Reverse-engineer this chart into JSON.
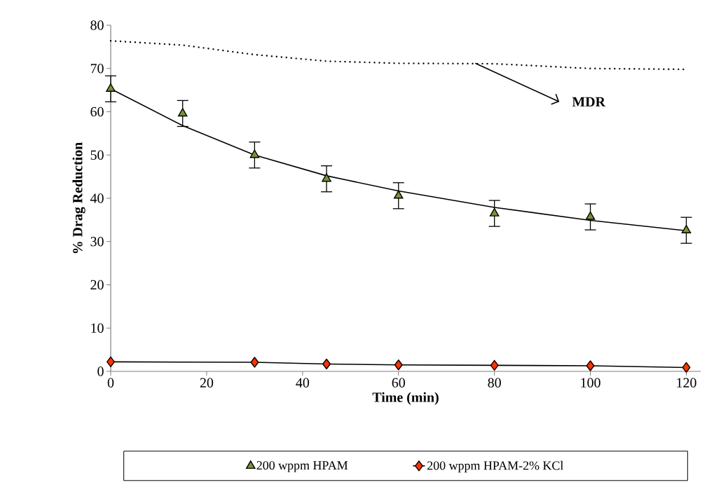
{
  "chart_data": {
    "type": "scatter",
    "xlabel": "Time (min)",
    "ylabel": "% Drag Reduction",
    "xlim": [
      0,
      123
    ],
    "ylim": [
      0,
      80
    ],
    "xticks": [
      0,
      20,
      40,
      60,
      80,
      100,
      120
    ],
    "yticks": [
      0,
      10,
      20,
      30,
      40,
      50,
      60,
      70,
      80
    ],
    "legend": "bottom",
    "grid": false,
    "annotations": [
      {
        "text": "MDR",
        "x": 76,
        "y": 71.2
      }
    ],
    "series": [
      {
        "name": "200 wppm HPAM",
        "color": "#77933c",
        "marker": "triangle",
        "x": [
          0,
          15,
          30,
          45,
          60,
          80,
          100,
          120
        ],
        "values": [
          65.3,
          59.6,
          50,
          44.5,
          40.6,
          36.5,
          35.7,
          32.6
        ],
        "errors": [
          3,
          3,
          3,
          3,
          3,
          3,
          3,
          3
        ]
      },
      {
        "type": "line",
        "color": "#000000",
        "marker": "none",
        "line_style": "solid",
        "x": [
          0,
          15,
          30,
          45,
          60,
          80,
          100,
          120
        ],
        "values": [
          65.3,
          56.8,
          50,
          45.2,
          41.7,
          37.9,
          34.9,
          32.5
        ]
      },
      {
        "name": "200 wppm HPAM-2% KCl",
        "type": "line",
        "color": "#ff3300",
        "marker": "diamond",
        "line_style": "solid",
        "x": [
          0,
          30,
          45,
          60,
          80,
          100,
          120
        ],
        "values": [
          2.2,
          2.1,
          1.7,
          1.5,
          1.4,
          1.3,
          0.9
        ]
      },
      {
        "type": "line",
        "color": "#000000",
        "marker": "none",
        "line_style": "dotted",
        "x": [
          0,
          15,
          30,
          45,
          60,
          80,
          100,
          120
        ],
        "values": [
          76.4,
          75.4,
          73.2,
          71.7,
          71.2,
          71.1,
          70.0,
          69.8
        ]
      }
    ]
  }
}
